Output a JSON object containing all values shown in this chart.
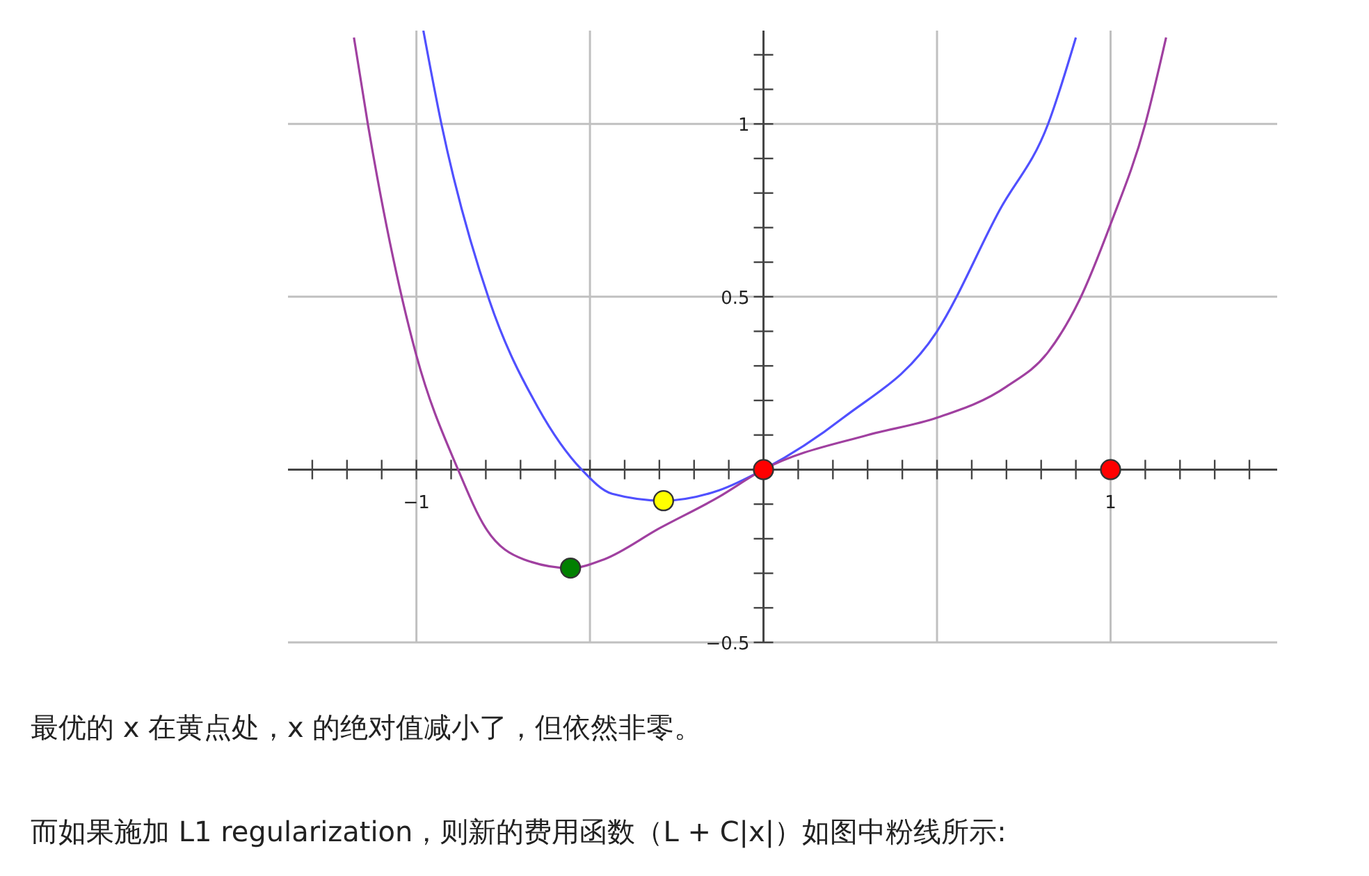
{
  "chart_data": {
    "type": "line",
    "xlim": [
      -1.37,
      1.48
    ],
    "ylim": [
      -0.5,
      1.27
    ],
    "xticks": [
      {
        "value": -1.3,
        "label": null
      },
      {
        "value": -1.2,
        "label": null
      },
      {
        "value": -1.1,
        "label": null
      },
      {
        "value": -1,
        "label": "−1"
      },
      {
        "value": -0.9,
        "label": null
      },
      {
        "value": -0.8,
        "label": null
      },
      {
        "value": -0.7,
        "label": null
      },
      {
        "value": -0.6,
        "label": null
      },
      {
        "value": -0.5,
        "label": null
      },
      {
        "value": -0.4,
        "label": null
      },
      {
        "value": -0.3,
        "label": null
      },
      {
        "value": -0.2,
        "label": null
      },
      {
        "value": -0.1,
        "label": null
      },
      {
        "value": 0.1,
        "label": null
      },
      {
        "value": 0.2,
        "label": null
      },
      {
        "value": 0.3,
        "label": null
      },
      {
        "value": 0.4,
        "label": null
      },
      {
        "value": 0.5,
        "label": null
      },
      {
        "value": 0.6,
        "label": null
      },
      {
        "value": 0.7,
        "label": null
      },
      {
        "value": 0.8,
        "label": null
      },
      {
        "value": 0.9,
        "label": null
      },
      {
        "value": 1,
        "label": "1"
      },
      {
        "value": 1.1,
        "label": null
      },
      {
        "value": 1.2,
        "label": null
      },
      {
        "value": 1.3,
        "label": null
      },
      {
        "value": 1.4,
        "label": null
      }
    ],
    "yticks": [
      {
        "value": -0.5,
        "label": "−0.5"
      },
      {
        "value": -0.4,
        "label": null
      },
      {
        "value": -0.3,
        "label": null
      },
      {
        "value": -0.2,
        "label": null
      },
      {
        "value": -0.1,
        "label": null
      },
      {
        "value": 0.1,
        "label": null
      },
      {
        "value": 0.2,
        "label": null
      },
      {
        "value": 0.3,
        "label": null
      },
      {
        "value": 0.4,
        "label": null
      },
      {
        "value": 0.5,
        "label": "0.5"
      },
      {
        "value": 0.6,
        "label": null
      },
      {
        "value": 0.7,
        "label": null
      },
      {
        "value": 0.8,
        "label": null
      },
      {
        "value": 0.9,
        "label": null
      },
      {
        "value": 1,
        "label": "1"
      },
      {
        "value": 1.1,
        "label": null
      },
      {
        "value": 1.2,
        "label": null
      }
    ],
    "grid": true,
    "marker": "none",
    "line_style": "solid",
    "series": [
      {
        "color": "#5050ff",
        "x": [
          -0.98,
          -0.928,
          -0.79,
          -0.65,
          -0.524,
          -0.436,
          -0.288,
          -0.128,
          0,
          0.23,
          0.5,
          0.68,
          0.82,
          0.9
        ],
        "values": [
          1.27,
          1.0,
          0.49,
          0.18,
          0.0,
          -0.07,
          -0.09,
          -0.06,
          0,
          0.15,
          0.4,
          0.75,
          1.0,
          1.25
        ]
      },
      {
        "color": "#a040a0",
        "x": [
          -1.18,
          -1.14,
          -1.04,
          -1.0,
          -0.88,
          -0.8,
          -0.69,
          -0.556,
          -0.46,
          -0.3,
          -0.13,
          0,
          0.3,
          0.5,
          0.7,
          0.82,
          0.91,
          1.0,
          1.1,
          1.16
        ],
        "values": [
          1.25,
          1.0,
          0.49,
          0.33,
          0,
          -0.17,
          -0.26,
          -0.285,
          -0.26,
          -0.17,
          -0.08,
          0,
          0.1,
          0.15,
          0.24,
          0.34,
          0.49,
          0.71,
          1.0,
          1.25
        ]
      },
      {
        "type": "scatter",
        "marker": "circle",
        "x": [
          -0.288,
          -0.556,
          0,
          1
        ],
        "values": [
          -0.09,
          -0.285,
          0,
          0
        ],
        "colors": [
          "#ffff00",
          "#008000",
          "#ff0000",
          "#ff0000"
        ]
      }
    ],
    "annotations": [
      "最优的 x 在黄点处，x 的绝对值减小了，但依然非零。",
      "而如果施加 L1 regularization，则新的费用函数（L + C|x|）如图中粉线所示:"
    ]
  }
}
